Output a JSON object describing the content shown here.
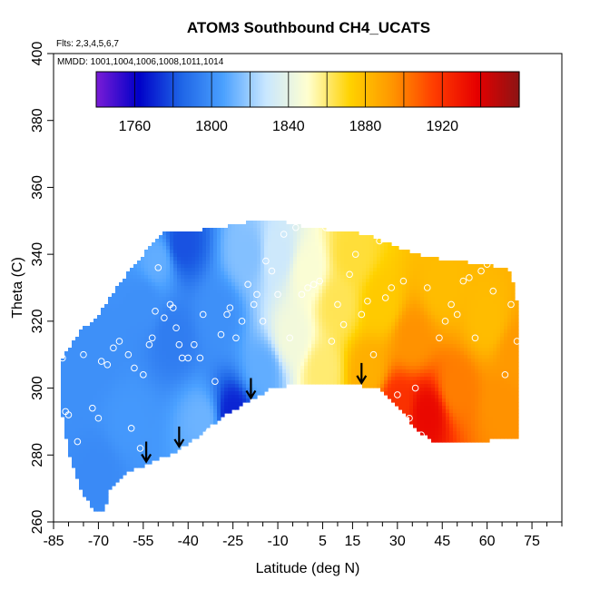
{
  "chart_data": {
    "type": "heatmap",
    "title": "ATOM3 Southbound CH4_UCATS",
    "subtitle_flights": "Flts: 2,3,4,5,6,7",
    "subtitle_dates": "MMDD: 1001,1004,1006,1008,1011,1014",
    "xlabel": "Latitude (deg N)",
    "ylabel": "Theta (C)",
    "xlim": [
      -85,
      85
    ],
    "ylim": [
      260,
      400
    ],
    "x_tick_labels": [
      "-85",
      "-70",
      "-55",
      "-40",
      "-25",
      "-10",
      "5",
      "15",
      "30",
      "45",
      "60",
      "75"
    ],
    "x_tick_values": [
      -85,
      -70,
      -55,
      -40,
      -25,
      -10,
      5,
      15,
      30,
      45,
      60,
      75
    ],
    "y_tick_labels": [
      "260",
      "280",
      "300",
      "320",
      "340",
      "360",
      "380",
      "400"
    ],
    "y_tick_values": [
      260,
      280,
      300,
      320,
      340,
      360,
      380,
      400
    ],
    "colorbar": {
      "range": [
        1740,
        1960
      ],
      "tick_labels": [
        "1760",
        "1800",
        "1840",
        "1880",
        "1920"
      ],
      "tick_values": [
        1760,
        1800,
        1840,
        1880,
        1920
      ],
      "colors": [
        "#7a1cd6",
        "#0000c8",
        "#1e64e6",
        "#4aa0ff",
        "#c8e6ff",
        "#ffffd0",
        "#ffd200",
        "#ff9600",
        "#ff3c00",
        "#e60000",
        "#8c1414"
      ]
    },
    "field_points": [
      {
        "lat": -80,
        "theta": 300,
        "value": 1800
      },
      {
        "lat": -70,
        "theta": 275,
        "value": 1798
      },
      {
        "lat": -70,
        "theta": 310,
        "value": 1800
      },
      {
        "lat": -60,
        "theta": 290,
        "value": 1803
      },
      {
        "lat": -55,
        "theta": 325,
        "value": 1800
      },
      {
        "lat": -50,
        "theta": 338,
        "value": 1810
      },
      {
        "lat": -45,
        "theta": 315,
        "value": 1793
      },
      {
        "lat": -42,
        "theta": 343,
        "value": 1780
      },
      {
        "lat": -35,
        "theta": 290,
        "value": 1812
      },
      {
        "lat": -30,
        "theta": 322,
        "value": 1800
      },
      {
        "lat": -25,
        "theta": 292,
        "value": 1770
      },
      {
        "lat": -20,
        "theta": 340,
        "value": 1816
      },
      {
        "lat": -15,
        "theta": 305,
        "value": 1810
      },
      {
        "lat": -10,
        "theta": 340,
        "value": 1830
      },
      {
        "lat": -5,
        "theta": 315,
        "value": 1845
      },
      {
        "lat": 0,
        "theta": 335,
        "value": 1848
      },
      {
        "lat": 5,
        "theta": 305,
        "value": 1860
      },
      {
        "lat": 10,
        "theta": 325,
        "value": 1863
      },
      {
        "lat": 15,
        "theta": 340,
        "value": 1866
      },
      {
        "lat": 20,
        "theta": 305,
        "value": 1885
      },
      {
        "lat": 25,
        "theta": 325,
        "value": 1875
      },
      {
        "lat": 30,
        "theta": 295,
        "value": 1920
      },
      {
        "lat": 35,
        "theta": 315,
        "value": 1895
      },
      {
        "lat": 40,
        "theta": 292,
        "value": 1935
      },
      {
        "lat": 45,
        "theta": 330,
        "value": 1880
      },
      {
        "lat": 50,
        "theta": 300,
        "value": 1900
      },
      {
        "lat": 60,
        "theta": 320,
        "value": 1880
      },
      {
        "lat": 65,
        "theta": 295,
        "value": 1895
      },
      {
        "lat": 70,
        "theta": 310,
        "value": 1893
      }
    ],
    "observation_points": [
      [
        -82,
        309
      ],
      [
        -81,
        293
      ],
      [
        -80,
        292
      ],
      [
        -77,
        284
      ],
      [
        -75,
        310
      ],
      [
        -72,
        294
      ],
      [
        -70,
        291
      ],
      [
        -69,
        308
      ],
      [
        -67,
        307
      ],
      [
        -65,
        312
      ],
      [
        -63,
        314
      ],
      [
        -60,
        310
      ],
      [
        -59,
        288
      ],
      [
        -58,
        306
      ],
      [
        -56,
        282
      ],
      [
        -55,
        304
      ],
      [
        -53,
        313
      ],
      [
        -52,
        315
      ],
      [
        -51,
        323
      ],
      [
        -50,
        336
      ],
      [
        -48,
        321
      ],
      [
        -46,
        325
      ],
      [
        -45,
        324
      ],
      [
        -44,
        318
      ],
      [
        -43,
        313
      ],
      [
        -42,
        309
      ],
      [
        -40,
        309
      ],
      [
        -38,
        313
      ],
      [
        -36,
        309
      ],
      [
        -35,
        322
      ],
      [
        -33,
        287
      ],
      [
        -31,
        302
      ],
      [
        -29,
        316
      ],
      [
        -27,
        322
      ],
      [
        -26,
        324
      ],
      [
        -24,
        315
      ],
      [
        -22,
        320
      ],
      [
        -20,
        331
      ],
      [
        -18,
        325
      ],
      [
        -17,
        328
      ],
      [
        -15,
        320
      ],
      [
        -14,
        338
      ],
      [
        -12,
        335
      ],
      [
        -10,
        328
      ],
      [
        -8,
        346
      ],
      [
        -6,
        315
      ],
      [
        -4,
        348
      ],
      [
        -2,
        328
      ],
      [
        0,
        330
      ],
      [
        2,
        331
      ],
      [
        4,
        332
      ],
      [
        6,
        348
      ],
      [
        8,
        314
      ],
      [
        10,
        325
      ],
      [
        12,
        319
      ],
      [
        14,
        334
      ],
      [
        16,
        340
      ],
      [
        18,
        322
      ],
      [
        20,
        326
      ],
      [
        22,
        310
      ],
      [
        24,
        344
      ],
      [
        26,
        327
      ],
      [
        28,
        330
      ],
      [
        30,
        298
      ],
      [
        32,
        332
      ],
      [
        34,
        291
      ],
      [
        36,
        300
      ],
      [
        38,
        286
      ],
      [
        40,
        330
      ],
      [
        42,
        345
      ],
      [
        44,
        315
      ],
      [
        46,
        320
      ],
      [
        48,
        325
      ],
      [
        50,
        322
      ],
      [
        52,
        332
      ],
      [
        54,
        333
      ],
      [
        56,
        315
      ],
      [
        58,
        335
      ],
      [
        60,
        337
      ],
      [
        62,
        329
      ],
      [
        64,
        338
      ],
      [
        66,
        304
      ],
      [
        68,
        325
      ],
      [
        70,
        314
      ]
    ],
    "arrows_lat": [
      -54,
      -43,
      -19,
      18
    ]
  }
}
